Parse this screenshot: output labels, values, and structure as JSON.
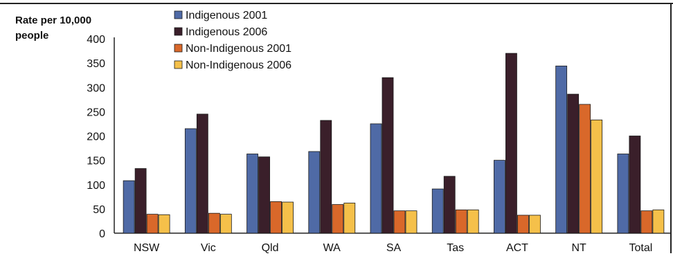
{
  "chart_data": {
    "type": "bar",
    "ylabel_line1": "Rate per 10,000",
    "ylabel_line2": "people",
    "ylim": [
      0,
      400
    ],
    "yticks": [
      0,
      50,
      100,
      150,
      200,
      250,
      300,
      350,
      400
    ],
    "categories": [
      "NSW",
      "Vic",
      "Qld",
      "WA",
      "SA",
      "Tas",
      "ACT",
      "NT",
      "Total"
    ],
    "series": [
      {
        "name": "Indigenous 2001",
        "color": "#4f6aa6",
        "values": [
          108,
          215,
          163,
          168,
          225,
          91,
          150,
          344,
          163
        ]
      },
      {
        "name": "Indigenous 2006",
        "color": "#3a1f2a",
        "values": [
          133,
          245,
          157,
          232,
          320,
          117,
          370,
          286,
          200
        ]
      },
      {
        "name": "Non-Indigenous 2001",
        "color": "#d9682a",
        "values": [
          39,
          41,
          65,
          59,
          46,
          48,
          37,
          265,
          46
        ]
      },
      {
        "name": "Non-Indigenous 2006",
        "color": "#f5c04a",
        "values": [
          38,
          39,
          64,
          62,
          46,
          48,
          37,
          233,
          48
        ]
      }
    ],
    "legend_position": "top-left",
    "grid": false
  }
}
